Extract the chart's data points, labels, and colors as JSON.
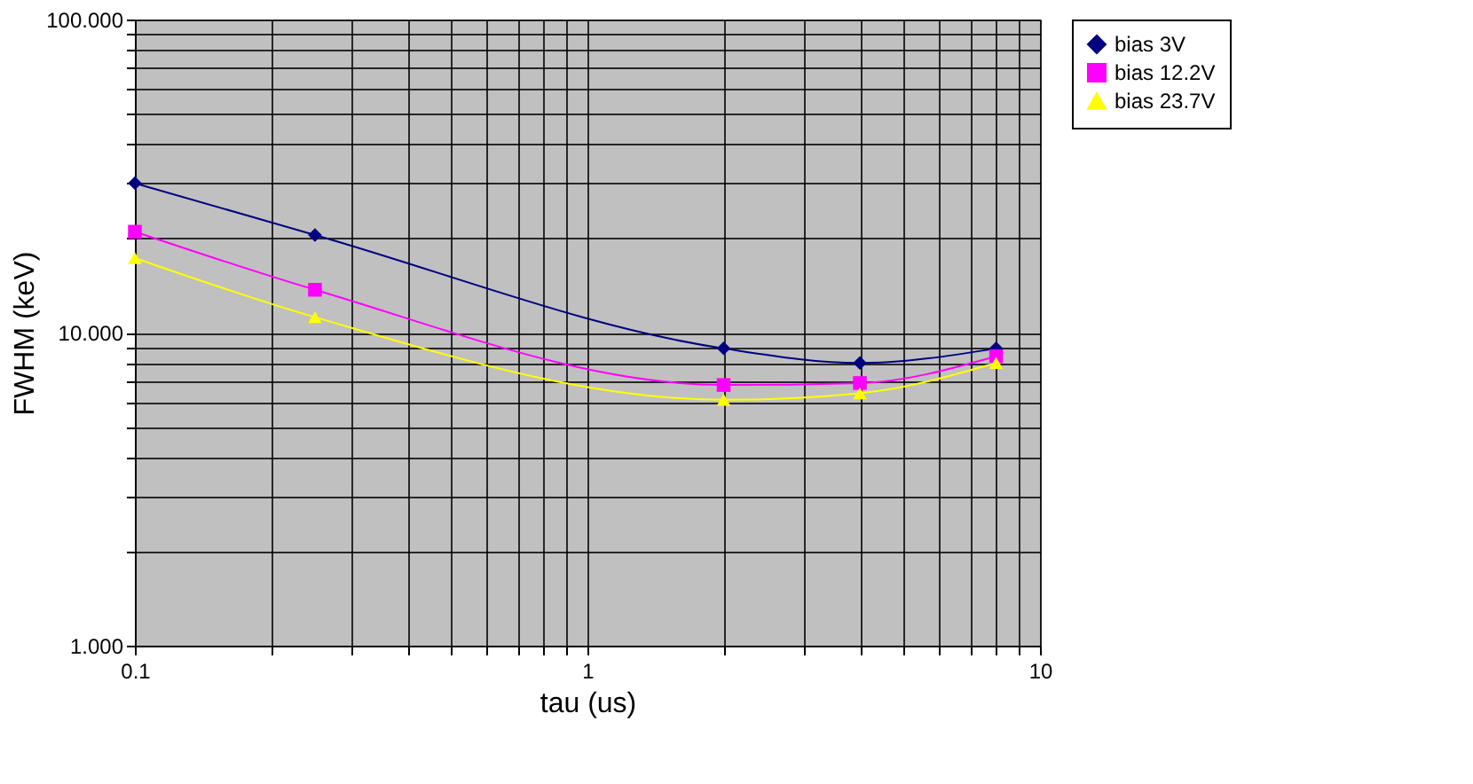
{
  "chart_data": {
    "type": "line",
    "xlabel": "tau (us)",
    "ylabel": "FWHM (keV)",
    "x": [
      0.1,
      0.25,
      2,
      4,
      8
    ],
    "series": [
      {
        "name": "bias 3V",
        "color": "#000080",
        "marker": "diamond",
        "values": [
          30,
          20.5,
          8.9,
          8.0,
          8.9
        ]
      },
      {
        "name": "bias 12.2V",
        "color": "#ff00ff",
        "marker": "square",
        "values": [
          21,
          13.7,
          6.8,
          6.9,
          8.4
        ]
      },
      {
        "name": "bias 23.7V",
        "color": "#ffff00",
        "marker": "triangle",
        "values": [
          17.3,
          11.2,
          6.1,
          6.4,
          8.0
        ]
      }
    ],
    "log": "xy",
    "grid": true,
    "legend": "right",
    "line_style": "solid",
    "xlim": [
      0.1,
      10
    ],
    "ylim": [
      1,
      100
    ],
    "xticks": [
      {
        "value": 0.1,
        "label": "0.1"
      },
      {
        "value": 0.2,
        "label": null
      },
      {
        "value": 0.3,
        "label": null
      },
      {
        "value": 0.4,
        "label": null
      },
      {
        "value": 0.5,
        "label": null
      },
      {
        "value": 0.6,
        "label": null
      },
      {
        "value": 0.7,
        "label": null
      },
      {
        "value": 0.8,
        "label": null
      },
      {
        "value": 0.9,
        "label": null
      },
      {
        "value": 1,
        "label": "1"
      },
      {
        "value": 2,
        "label": null
      },
      {
        "value": 3,
        "label": null
      },
      {
        "value": 4,
        "label": null
      },
      {
        "value": 5,
        "label": null
      },
      {
        "value": 6,
        "label": null
      },
      {
        "value": 7,
        "label": null
      },
      {
        "value": 8,
        "label": null
      },
      {
        "value": 9,
        "label": null
      },
      {
        "value": 10,
        "label": "10"
      }
    ],
    "yticks": [
      {
        "value": 1,
        "label": "1.000"
      },
      {
        "value": 2,
        "label": null
      },
      {
        "value": 3,
        "label": null
      },
      {
        "value": 4,
        "label": null
      },
      {
        "value": 5,
        "label": null
      },
      {
        "value": 6,
        "label": null
      },
      {
        "value": 7,
        "label": null
      },
      {
        "value": 8,
        "label": null
      },
      {
        "value": 9,
        "label": null
      },
      {
        "value": 10,
        "label": "10.000"
      },
      {
        "value": 20,
        "label": null
      },
      {
        "value": 30,
        "label": null
      },
      {
        "value": 40,
        "label": null
      },
      {
        "value": 50,
        "label": null
      },
      {
        "value": 60,
        "label": null
      },
      {
        "value": 70,
        "label": null
      },
      {
        "value": 80,
        "label": null
      },
      {
        "value": 90,
        "label": null
      },
      {
        "value": 100,
        "label": "100.000"
      }
    ]
  }
}
